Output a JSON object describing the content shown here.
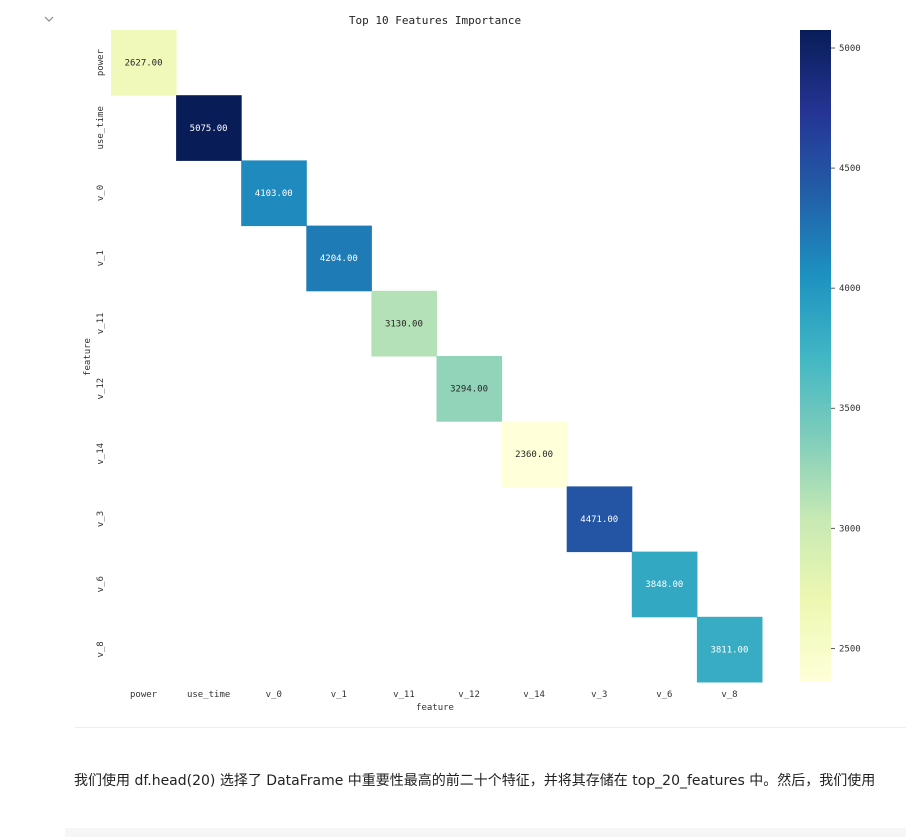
{
  "chart_data": {
    "type": "heatmap",
    "title": "Top 10 Features Importance",
    "xlabel": "feature",
    "ylabel": "feature",
    "categories": [
      "power",
      "use_time",
      "v_0",
      "v_1",
      "v_11",
      "v_12",
      "v_14",
      "v_3",
      "v_6",
      "v_8"
    ],
    "diagonal_values": [
      2627,
      5075,
      4103,
      4204,
      3130,
      3294,
      2360,
      4471,
      3848,
      3811
    ],
    "value_labels": [
      "2627.00",
      "5075.00",
      "4103.00",
      "4204.00",
      "3130.00",
      "3294.00",
      "2360.00",
      "4471.00",
      "3848.00",
      "3811.00"
    ],
    "off_diagonal": "empty",
    "colormap": "YlGnBu",
    "colorbar": {
      "range": [
        2360,
        5075
      ],
      "ticks": [
        2500,
        3000,
        3500,
        4000,
        4500,
        5000
      ],
      "tick_labels": [
        "2500",
        "3000",
        "3500",
        "4000",
        "4500",
        "5000"
      ]
    },
    "grid": false,
    "legend": "colorbar-right"
  },
  "caption": "我们使用 df.head(20) 选择了 DataFrame 中重要性最高的前二十个特征，并将其存储在 top_20_features 中。然后，我们使用",
  "icons": {
    "collapse": "chevron-down-icon"
  }
}
